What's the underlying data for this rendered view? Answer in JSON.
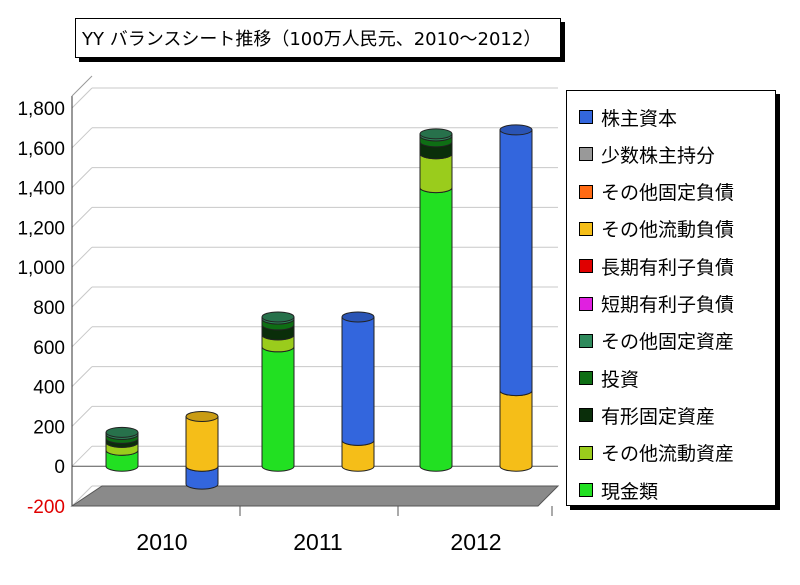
{
  "title": "YY バランスシート推移（100万人民元、2010～2012）",
  "chart_data": {
    "type": "bar",
    "stacked": true,
    "categories": [
      "2010",
      "2011",
      "2012"
    ],
    "ylim": [
      -200,
      1800
    ],
    "yticks": [
      "-200",
      "0",
      "200",
      "400",
      "600",
      "800",
      "1,000",
      "1,200",
      "1,400",
      "1,600",
      "1,800"
    ],
    "ytick_values": [
      -200,
      0,
      200,
      400,
      600,
      800,
      1000,
      1200,
      1400,
      1600,
      1800
    ],
    "legend_position": "right",
    "grid": true,
    "series": [
      {
        "name": "株主資本",
        "color": "#3366dd",
        "group": "liabilities",
        "values": [
          -90,
          620,
          1310
        ]
      },
      {
        "name": "少数株主持分",
        "color": "#999999",
        "group": "liabilities",
        "values": [
          0,
          0,
          0
        ]
      },
      {
        "name": "その他固定負債",
        "color": "#ff6a13",
        "group": "liabilities",
        "values": [
          0,
          0,
          0
        ]
      },
      {
        "name": "その他流動負債",
        "color": "#f5be18",
        "group": "liabilities",
        "values": [
          250,
          130,
          380
        ]
      },
      {
        "name": "長期有利子負債",
        "color": "#e00000",
        "group": "liabilities",
        "values": [
          0,
          0,
          0
        ]
      },
      {
        "name": "短期有利子負債",
        "color": "#e020e0",
        "group": "liabilities",
        "values": [
          0,
          0,
          0
        ]
      },
      {
        "name": "その他固定資産",
        "color": "#2f8a5c",
        "group": "assets",
        "values": [
          10,
          10,
          10
        ]
      },
      {
        "name": "投資",
        "color": "#0e6e14",
        "group": "assets",
        "values": [
          20,
          30,
          30
        ]
      },
      {
        "name": "有形固定資産",
        "color": "#0a2e0a",
        "group": "assets",
        "values": [
          20,
          50,
          60
        ]
      },
      {
        "name": "その他流動資産",
        "color": "#9acc1c",
        "group": "assets",
        "values": [
          40,
          60,
          170
        ]
      },
      {
        "name": "現金類",
        "color": "#22e022",
        "group": "assets",
        "values": [
          80,
          600,
          1400
        ]
      }
    ]
  }
}
